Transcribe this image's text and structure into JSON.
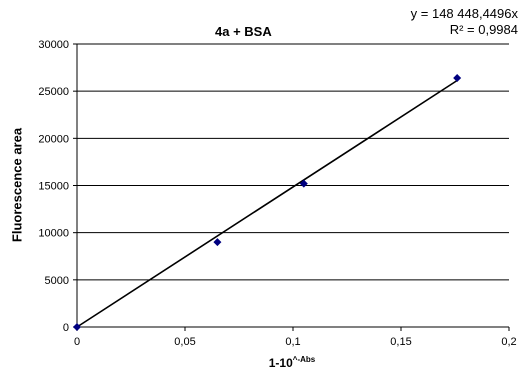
{
  "chart_data": {
    "type": "scatter",
    "title": "4a + BSA",
    "xlabel": {
      "base": "1-10",
      "sup": "^-Abs"
    },
    "ylabel": "Fluorescence area",
    "xlim": [
      0,
      0.2
    ],
    "ylim": [
      0,
      30000
    ],
    "xticks": [
      "0",
      "0,05",
      "0,1",
      "0,15",
      "0,2"
    ],
    "yticks": [
      "0",
      "5000",
      "10000",
      "15000",
      "20000",
      "25000",
      "30000"
    ],
    "grid": "horizontal",
    "series": [
      {
        "x": [
          0,
          0.065,
          0.105,
          0.176
        ],
        "y": [
          0,
          9000,
          15200,
          26400
        ],
        "marker": "diamond",
        "color": "#000080"
      }
    ],
    "trendline": {
      "x": [
        0,
        0.176
      ],
      "y": [
        0,
        26130
      ],
      "color": "#000000"
    },
    "equation": "y = 148 448,4496x",
    "r_squared": "R² = 0,9984"
  }
}
